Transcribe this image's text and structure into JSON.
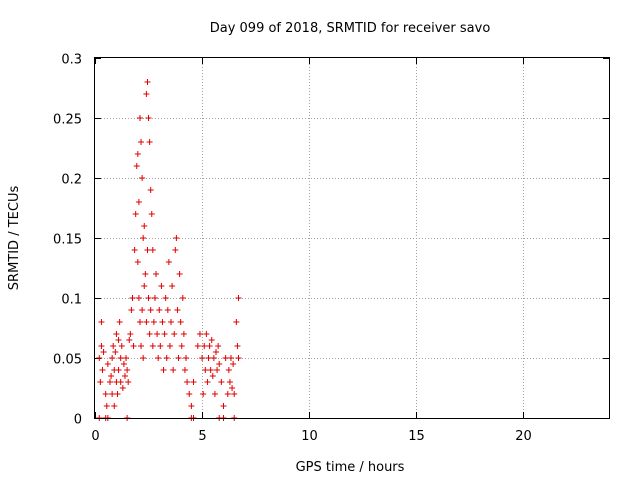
{
  "chart_data": {
    "type": "scatter",
    "title": "Day 099 of 2018, SRMTID for receiver savo",
    "xlabel": "GPS time / hours",
    "ylabel": "SRMTID / TECUs",
    "xlim": [
      0,
      24
    ],
    "ylim": [
      0,
      0.3
    ],
    "x_ticks": [
      0,
      5,
      10,
      15,
      20
    ],
    "x_tick_labels": [
      "0",
      "5",
      "10",
      "15",
      "20"
    ],
    "y_ticks": [
      0,
      0.05,
      0.1,
      0.15,
      0.2,
      0.25,
      0.3
    ],
    "y_tick_labels": [
      "0",
      "0.05",
      "0.1",
      "0.15",
      "0.2",
      "0.25",
      "0.3"
    ],
    "grid": true,
    "marker": "plus",
    "color": "#e00000",
    "series": [
      {
        "name": "SRMTID",
        "x": [
          0.2,
          0.25,
          0.3,
          0.3,
          0.35,
          0.4,
          0.5,
          0.55,
          0.6,
          0.7,
          0.75,
          0.8,
          0.8,
          0.85,
          0.9,
          0.9,
          0.95,
          1.0,
          1.0,
          1.05,
          1.1,
          1.1,
          1.15,
          1.2,
          1.2,
          1.25,
          1.3,
          1.35,
          1.4,
          1.45,
          1.5,
          1.55,
          1.6,
          1.65,
          1.7,
          1.75,
          1.8,
          1.85,
          1.9,
          1.95,
          2.0,
          2.0,
          2.05,
          2.05,
          2.1,
          2.1,
          2.15,
          2.15,
          2.2,
          2.2,
          2.25,
          2.25,
          2.3,
          2.3,
          2.35,
          2.4,
          2.4,
          2.45,
          2.45,
          2.5,
          2.5,
          2.55,
          2.55,
          2.6,
          2.6,
          2.65,
          2.7,
          2.7,
          2.75,
          2.8,
          2.85,
          2.9,
          2.95,
          3.0,
          3.05,
          3.1,
          3.15,
          3.2,
          3.25,
          3.3,
          3.35,
          3.4,
          3.45,
          3.5,
          3.55,
          3.6,
          3.65,
          3.7,
          3.75,
          3.8,
          3.85,
          3.9,
          3.95,
          4.0,
          4.05,
          4.1,
          4.15,
          4.2,
          4.25,
          4.3,
          4.4,
          4.5,
          4.6,
          4.8,
          4.9,
          5.0,
          5.05,
          5.1,
          5.15,
          5.2,
          5.25,
          5.3,
          5.35,
          5.4,
          5.45,
          5.5,
          5.55,
          5.6,
          5.65,
          5.7,
          5.75,
          5.8,
          5.9,
          6.0,
          6.1,
          6.2,
          6.25,
          6.3,
          6.35,
          6.4,
          6.45,
          6.5,
          6.6,
          6.65,
          6.7,
          6.7,
          0.2,
          0.5,
          0.6,
          1.5,
          4.5,
          4.6,
          5.8,
          6.0,
          6.5
        ],
        "y": [
          0.05,
          0.03,
          0.08,
          0.06,
          0.04,
          0.055,
          0.02,
          0.01,
          0.045,
          0.03,
          0.035,
          0.05,
          0.02,
          0.06,
          0.01,
          0.04,
          0.055,
          0.03,
          0.07,
          0.02,
          0.065,
          0.04,
          0.08,
          0.03,
          0.05,
          0.06,
          0.025,
          0.045,
          0.035,
          0.05,
          0.04,
          0.03,
          0.065,
          0.07,
          0.09,
          0.1,
          0.06,
          0.14,
          0.17,
          0.21,
          0.22,
          0.13,
          0.18,
          0.1,
          0.25,
          0.08,
          0.23,
          0.06,
          0.2,
          0.09,
          0.15,
          0.05,
          0.16,
          0.11,
          0.12,
          0.27,
          0.08,
          0.28,
          0.14,
          0.25,
          0.1,
          0.23,
          0.07,
          0.19,
          0.09,
          0.17,
          0.14,
          0.06,
          0.08,
          0.1,
          0.12,
          0.07,
          0.05,
          0.09,
          0.06,
          0.11,
          0.08,
          0.04,
          0.07,
          0.1,
          0.05,
          0.09,
          0.13,
          0.06,
          0.08,
          0.11,
          0.04,
          0.07,
          0.14,
          0.15,
          0.09,
          0.05,
          0.12,
          0.08,
          0.06,
          0.1,
          0.07,
          0.04,
          0.05,
          0.03,
          0.02,
          0.01,
          0.03,
          0.06,
          0.07,
          0.05,
          0.02,
          0.06,
          0.04,
          0.07,
          0.03,
          0.05,
          0.06,
          0.04,
          0.065,
          0.035,
          0.05,
          0.02,
          0.055,
          0.04,
          0.06,
          0.045,
          0.03,
          0.01,
          0.05,
          0.02,
          0.04,
          0.03,
          0.05,
          0.025,
          0.045,
          0.02,
          0.08,
          0.06,
          0.1,
          0.05,
          0,
          0,
          0,
          0,
          0,
          0,
          0,
          0,
          0
        ]
      }
    ]
  }
}
